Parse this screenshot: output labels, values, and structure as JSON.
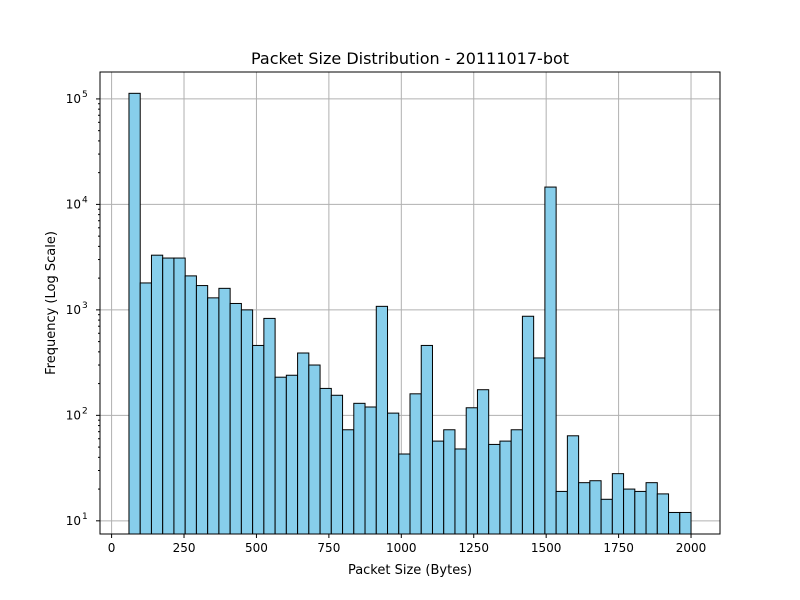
{
  "chart_data": {
    "type": "bar",
    "title": "Packet Size Distribution - 20111017-bot",
    "xlabel": "Packet Size (Bytes)",
    "ylabel": "Frequency (Log Scale)",
    "y_scale": "log",
    "xlim": [
      -40,
      2100
    ],
    "ylim": [
      7.5,
      180000
    ],
    "grid": true,
    "bar_color": "#87CEEB",
    "edge_color": "#000000",
    "x_ticks": [
      0,
      250,
      500,
      750,
      1000,
      1250,
      1500,
      1750,
      2000
    ],
    "x_tick_labels": [
      "0",
      "250",
      "500",
      "750",
      "1000",
      "1250",
      "1500",
      "1750",
      "2000"
    ],
    "y_ticks": [
      10,
      100,
      1000,
      10000,
      100000
    ],
    "y_tick_labels": [
      {
        "base": "10",
        "exp": "1"
      },
      {
        "base": "10",
        "exp": "2"
      },
      {
        "base": "10",
        "exp": "3"
      },
      {
        "base": "10",
        "exp": "4"
      },
      {
        "base": "10",
        "exp": "5"
      }
    ],
    "bin_edges": [
      60,
      98.8,
      137.6,
      176.4,
      215.2,
      254,
      292.8,
      331.6,
      370.4,
      409.2,
      448,
      486.8,
      525.6,
      564.4,
      603.2,
      642,
      680.8,
      719.6,
      758.4,
      797.2,
      836,
      874.8,
      913.6,
      952.4,
      991.2,
      1030,
      1068.8,
      1107.6,
      1146.4,
      1185.2,
      1224,
      1262.8,
      1301.6,
      1340.4,
      1379.2,
      1418,
      1456.8,
      1495.6,
      1534.4,
      1573.2,
      1612,
      1650.8,
      1689.6,
      1728.4,
      1767.2,
      1806,
      1844.8,
      1883.6,
      1922.4,
      1961.2,
      2000
    ],
    "values": [
      113000,
      1800,
      3300,
      3100,
      3100,
      2100,
      1700,
      1300,
      1600,
      1150,
      1000,
      460,
      830,
      230,
      240,
      390,
      300,
      180,
      155,
      73,
      130,
      120,
      1080,
      105,
      43,
      160,
      460,
      57,
      73,
      48,
      118,
      175,
      53,
      57,
      73,
      870,
      350,
      14600,
      19,
      64,
      23,
      24,
      16,
      28,
      20,
      19,
      23,
      18,
      12,
      12
    ]
  }
}
